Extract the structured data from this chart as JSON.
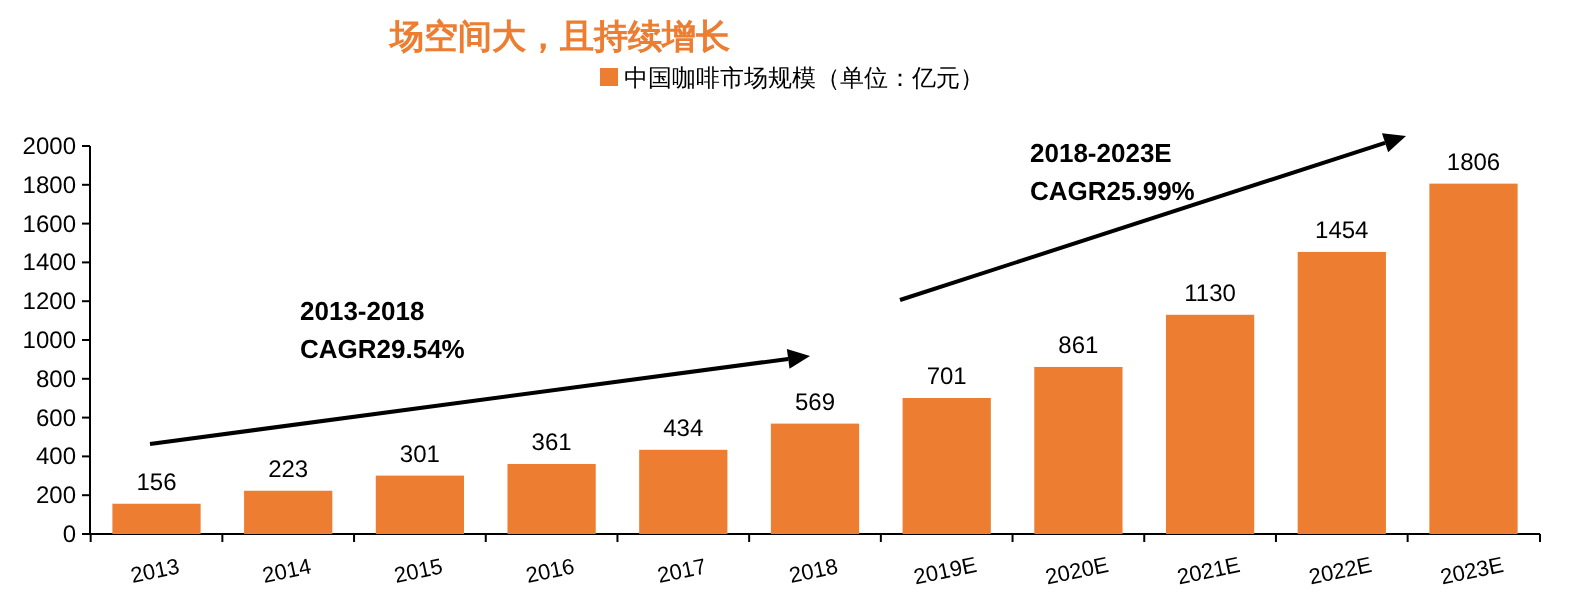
{
  "chart_data": {
    "type": "bar",
    "title": "场空间大，且持续增长",
    "categories": [
      "2013",
      "2014",
      "2015",
      "2016",
      "2017",
      "2018",
      "2019E",
      "2020E",
      "2021E",
      "2022E",
      "2023E"
    ],
    "series": [
      {
        "name": "中国咖啡市场规模（单位：亿元）",
        "color": "#ed7d31",
        "values": [
          156,
          223,
          301,
          361,
          434,
          569,
          701,
          861,
          1130,
          1454,
          1806
        ]
      }
    ],
    "ylim": [
      0,
      2000
    ],
    "yticks": [
      0,
      200,
      400,
      600,
      800,
      1000,
      1200,
      1400,
      1600,
      1800,
      2000
    ],
    "data_labels": true,
    "legend": "top",
    "annotations": [
      "2013-2018\nCAGR29.54%",
      "2018-2023E\nCAGR25.99%"
    ]
  }
}
